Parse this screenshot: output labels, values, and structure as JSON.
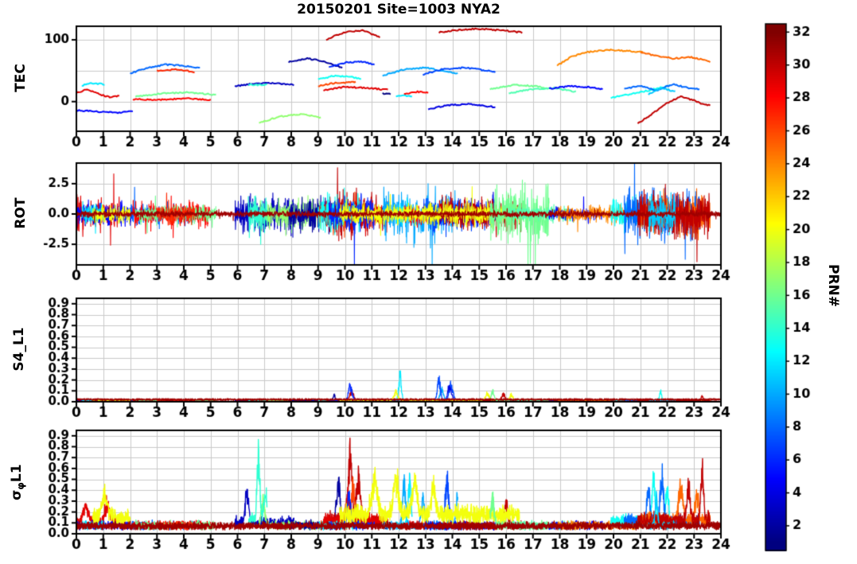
{
  "title": "20150201 Site=1003 NYA2",
  "colors": {
    "background": "#ffffff",
    "grid": "#c9c9c9",
    "axis": "#000000"
  },
  "x_axis": {
    "lim": [
      0,
      24
    ],
    "ticks": [
      0,
      1,
      2,
      3,
      4,
      5,
      6,
      7,
      8,
      9,
      10,
      11,
      12,
      13,
      14,
      15,
      16,
      17,
      18,
      19,
      20,
      21,
      22,
      23,
      24
    ]
  },
  "colorbar": {
    "label": "PRN#",
    "value_range": [
      0.5,
      32.5
    ],
    "colormap": "jet",
    "ticks": [
      2,
      4,
      6,
      8,
      10,
      12,
      14,
      16,
      18,
      20,
      22,
      24,
      26,
      28,
      30,
      32
    ]
  },
  "panels": [
    {
      "id": "tec",
      "ylabel": "TEC",
      "ylim": [
        -48,
        122
      ],
      "yticks": [
        {
          "v": 100,
          "label": "100"
        },
        {
          "v": 0,
          "label": "0"
        }
      ],
      "grid_y": [
        0,
        50,
        100
      ]
    },
    {
      "id": "rot",
      "ylabel": "ROT",
      "ylim": [
        -4.2,
        4.2
      ],
      "yticks": [
        {
          "v": 2.5,
          "label": "2.5"
        },
        {
          "v": 0,
          "label": "0.0"
        },
        {
          "v": -2.5,
          "label": "-2.5"
        }
      ],
      "grid_y": [
        -2.5,
        0,
        2.5
      ]
    },
    {
      "id": "s4",
      "ylabel": "S4_L1",
      "ylim": [
        0,
        0.95
      ],
      "yticks": [
        {
          "v": 0,
          "label": "0.0"
        },
        {
          "v": 0.1,
          "label": "0.1"
        },
        {
          "v": 0.2,
          "label": "0.2"
        },
        {
          "v": 0.3,
          "label": "0.3"
        },
        {
          "v": 0.4,
          "label": "0.4"
        },
        {
          "v": 0.5,
          "label": "0.5"
        },
        {
          "v": 0.6,
          "label": "0.6"
        },
        {
          "v": 0.7,
          "label": "0.7"
        },
        {
          "v": 0.8,
          "label": "0.8"
        },
        {
          "v": 0.9,
          "label": "0.9"
        }
      ],
      "grid_y": [
        0.1,
        0.2,
        0.3,
        0.4,
        0.5,
        0.6,
        0.7,
        0.8,
        0.9
      ]
    },
    {
      "id": "sigma",
      "ylabel": "σφL1",
      "ylabel_parts": {
        "pre": "σ",
        "sub": "φ",
        "post": "L1"
      },
      "ylim": [
        0,
        0.95
      ],
      "yticks": [
        {
          "v": 0,
          "label": "0.0"
        },
        {
          "v": 0.1,
          "label": "0.1"
        },
        {
          "v": 0.2,
          "label": "0.2"
        },
        {
          "v": 0.3,
          "label": "0.3"
        },
        {
          "v": 0.4,
          "label": "0.4"
        },
        {
          "v": 0.5,
          "label": "0.5"
        },
        {
          "v": 0.6,
          "label": "0.6"
        },
        {
          "v": 0.7,
          "label": "0.7"
        },
        {
          "v": 0.8,
          "label": "0.8"
        },
        {
          "v": 0.9,
          "label": "0.9"
        }
      ],
      "grid_y": [
        0.1,
        0.2,
        0.3,
        0.4,
        0.5,
        0.6,
        0.7,
        0.8,
        0.9
      ]
    }
  ],
  "chart_data": {
    "type": "line",
    "x_range_hours": [
      0,
      24
    ],
    "panels": [
      "TEC",
      "ROT",
      "S4_L1",
      "sigma_phi_L1"
    ],
    "color_by": "PRN jet colormap 1-32",
    "series": [
      {
        "prn": 29,
        "tec": [
          [
            0,
            14
          ],
          [
            0.4,
            20
          ],
          [
            0.9,
            11
          ],
          [
            1.3,
            7
          ],
          [
            1.6,
            10
          ]
        ],
        "rot_amp": 1.3,
        "sig_base": 0.09,
        "sig_noise": 0.07,
        "sig_bursts": [
          [
            0.35,
            0.18,
            0.12
          ],
          [
            1.15,
            0.22,
            0.12
          ]
        ]
      },
      {
        "prn": 5,
        "tec": [
          [
            0,
            -14
          ],
          [
            0.7,
            -16
          ],
          [
            1.5,
            -18
          ],
          [
            2.1,
            -15
          ]
        ],
        "rot_amp": 0.9
      },
      {
        "prn": 12,
        "tec": [
          [
            0.2,
            26
          ],
          [
            0.6,
            30
          ],
          [
            1.05,
            28
          ]
        ],
        "rot_amp": 0.8
      },
      {
        "prn": 8,
        "tec": [
          [
            2.0,
            46
          ],
          [
            2.7,
            55
          ],
          [
            3.3,
            60
          ],
          [
            4.0,
            58
          ],
          [
            4.6,
            55
          ]
        ],
        "rot_amp": 0.7
      },
      {
        "prn": 28,
        "tec": [
          [
            2.1,
            4
          ],
          [
            3.0,
            3
          ],
          [
            4.1,
            5
          ],
          [
            5.0,
            3
          ]
        ],
        "rot_amp": 0.9
      },
      {
        "prn": 16,
        "tec": [
          [
            2.2,
            8
          ],
          [
            3.1,
            13
          ],
          [
            4.1,
            15
          ],
          [
            5.2,
            11
          ]
        ],
        "rot_amp": 0.7
      },
      {
        "prn": 27,
        "tec": [
          [
            3.0,
            50
          ],
          [
            3.7,
            52
          ],
          [
            4.4,
            48
          ]
        ],
        "rot_amp": 0.9
      },
      {
        "prn": 20,
        "trange": [
          0.6,
          2.0
        ],
        "rot_amp": 0.7,
        "sig_base": 0.12,
        "sig_noise": 0.1,
        "sig_bursts": [
          [
            1.05,
            0.25,
            0.15
          ]
        ]
      },
      {
        "prn": 3,
        "tec": [
          [
            5.9,
            25
          ],
          [
            6.6,
            29
          ],
          [
            7.4,
            30
          ],
          [
            8.1,
            27
          ]
        ],
        "rot_amp": 1.6,
        "sig_base": 0.08,
        "sig_noise": 0.07,
        "sig_bursts": [
          [
            6.35,
            0.32,
            0.1
          ]
        ]
      },
      {
        "prn": 17,
        "tec": [
          [
            6.8,
            -34
          ],
          [
            7.6,
            -24
          ],
          [
            8.4,
            -20
          ],
          [
            9.1,
            -26
          ]
        ],
        "rot_amp": 1.2,
        "sig_bursts": [
          [
            6.95,
            0.3,
            0.09
          ]
        ]
      },
      {
        "prn": 14,
        "tec": [
          [
            6.4,
            28
          ],
          [
            6.8,
            27
          ],
          [
            7.1,
            28
          ]
        ],
        "rot_amp": 1.4,
        "sig_base": 0.1,
        "sig_noise": 0.1,
        "sig_bursts": [
          [
            6.78,
            0.75,
            0.07
          ],
          [
            7.05,
            0.32,
            0.09
          ]
        ]
      },
      {
        "prn": 2,
        "tec": [
          [
            7.9,
            64
          ],
          [
            8.6,
            70
          ],
          [
            9.3,
            64
          ],
          [
            9.9,
            55
          ]
        ],
        "rot_amp": 1.3,
        "s4_bursts": [
          [
            9.6,
            0.07,
            0.05
          ]
        ],
        "sig_bursts": [
          [
            9.75,
            0.52,
            0.1
          ]
        ]
      },
      {
        "prn": 30,
        "tec": [
          [
            9.3,
            100
          ],
          [
            9.7,
            108
          ],
          [
            10.1,
            113
          ],
          [
            10.7,
            115
          ],
          [
            11.3,
            104
          ]
        ],
        "rot_amp": 1.8,
        "s4_bursts": [
          [
            10.25,
            0.1,
            0.1
          ]
        ],
        "sig_base": 0.1,
        "sig_noise": 0.09,
        "sig_bursts": [
          [
            10.2,
            0.85,
            0.09
          ],
          [
            10.5,
            0.5,
            0.1
          ]
        ]
      },
      {
        "prn": 26,
        "tec": [
          [
            9.0,
            25
          ],
          [
            9.6,
            30
          ],
          [
            10.4,
            32
          ]
        ],
        "rot_amp": 1.0,
        "sig_bursts": [
          [
            10.3,
            0.45,
            0.1
          ]
        ]
      },
      {
        "prn": 29,
        "tec": [
          [
            9.2,
            18
          ],
          [
            10.0,
            24
          ],
          [
            10.8,
            22
          ],
          [
            11.6,
            19
          ]
        ],
        "rot_amp": 1.2,
        "sig_base": 0.1,
        "sig_noise": 0.08,
        "sig_bursts": [
          [
            10.1,
            0.3,
            0.08
          ]
        ]
      },
      {
        "prn": 13,
        "tec": [
          [
            9.0,
            36
          ],
          [
            9.6,
            42
          ],
          [
            10.2,
            40
          ],
          [
            10.6,
            37
          ]
        ],
        "rot_amp": 1.5
      },
      {
        "prn": 6,
        "tec": [
          [
            9.4,
            56
          ],
          [
            10.0,
            63
          ],
          [
            10.6,
            65
          ],
          [
            11.1,
            60
          ]
        ],
        "rot_amp": 1.4,
        "s4_bursts": [
          [
            10.2,
            0.17,
            0.1
          ]
        ],
        "sig_bursts": [
          [
            10.15,
            0.35,
            0.09
          ]
        ]
      },
      {
        "prn": 1,
        "tec": [
          [
            11.4,
            13
          ],
          [
            11.7,
            12
          ]
        ],
        "rot_amp": 0.6
      },
      {
        "prn": 10,
        "tec": [
          [
            11.4,
            42
          ],
          [
            12.2,
            52
          ],
          [
            13.0,
            55
          ],
          [
            13.6,
            50
          ],
          [
            14.2,
            45
          ]
        ],
        "rot_amp": 1.8,
        "s4_bursts": [
          [
            13.6,
            0.14,
            0.09
          ]
        ],
        "sig_bursts": [
          [
            12.2,
            0.5,
            0.08
          ],
          [
            12.9,
            0.3,
            0.09
          ],
          [
            14.2,
            0.35,
            0.09
          ]
        ]
      },
      {
        "prn": 12,
        "tec": [
          [
            11.9,
            8
          ],
          [
            12.2,
            10
          ],
          [
            12.5,
            8
          ]
        ],
        "rot_amp": 1.2,
        "s4_bursts": [
          [
            12.05,
            0.3,
            0.07
          ]
        ],
        "sig_bursts": [
          [
            12.4,
            0.5,
            0.08
          ]
        ]
      },
      {
        "prn": 28,
        "tec": [
          [
            12.2,
            12
          ],
          [
            12.7,
            16
          ],
          [
            13.1,
            14
          ]
        ],
        "rot_amp": 0.9
      },
      {
        "prn": 7,
        "tec": [
          [
            12.9,
            44
          ],
          [
            13.6,
            52
          ],
          [
            14.4,
            55
          ],
          [
            15.0,
            52
          ],
          [
            15.6,
            48
          ]
        ],
        "rot_amp": 1.3,
        "s4_bursts": [
          [
            13.5,
            0.25,
            0.08
          ],
          [
            13.95,
            0.2,
            0.1
          ]
        ],
        "sig_bursts": [
          [
            13.8,
            0.55,
            0.09
          ]
        ]
      },
      {
        "prn": 4,
        "tec": [
          [
            13.1,
            -12
          ],
          [
            13.8,
            -6
          ],
          [
            14.6,
            -4
          ],
          [
            15.6,
            -9
          ]
        ],
        "rot_amp": 1.0,
        "s4_bursts": [
          [
            13.9,
            0.2,
            0.09
          ]
        ]
      },
      {
        "prn": 30,
        "tec": [
          [
            13.5,
            112
          ],
          [
            14.2,
            116
          ],
          [
            15.0,
            118
          ],
          [
            15.9,
            115
          ],
          [
            16.6,
            112
          ]
        ],
        "rot_amp": 1.3,
        "s4_bursts": [
          [
            15.9,
            0.08,
            0.09
          ]
        ],
        "sig_bursts": [
          [
            16.0,
            0.25,
            0.1
          ]
        ]
      },
      {
        "prn": 20,
        "trange": [
          9.8,
          16.5
        ],
        "rot_amp": 0.9,
        "sig_base": 0.14,
        "sig_noise": 0.12,
        "s4_bursts": [
          [
            11.9,
            0.1,
            0.1
          ],
          [
            15.3,
            0.08,
            0.1
          ],
          [
            16.2,
            0.07,
            0.08
          ]
        ],
        "sig_bursts": [
          [
            11.1,
            0.4,
            0.14
          ],
          [
            11.9,
            0.45,
            0.12
          ],
          [
            12.6,
            0.35,
            0.14
          ],
          [
            13.3,
            0.3,
            0.12
          ]
        ]
      },
      {
        "prn": 16,
        "tec": [
          [
            15.4,
            20
          ],
          [
            16.3,
            27
          ],
          [
            17.1,
            25
          ],
          [
            17.6,
            21
          ]
        ],
        "rot_amp": 2.2,
        "s4_bursts": [
          [
            15.5,
            0.12,
            0.07
          ]
        ],
        "sig_bursts": [
          [
            15.5,
            0.3,
            0.09
          ]
        ]
      },
      {
        "prn": 15,
        "tec": [
          [
            16.1,
            13
          ],
          [
            16.9,
            20
          ],
          [
            17.8,
            22
          ],
          [
            18.6,
            16
          ]
        ],
        "rot_amp": 0.6
      },
      {
        "prn": 5,
        "tec": [
          [
            17.6,
            21
          ],
          [
            18.4,
            25
          ],
          [
            19.2,
            23
          ],
          [
            19.6,
            20
          ]
        ],
        "rot_amp": 0.5
      },
      {
        "prn": 24,
        "tec": [
          [
            17.9,
            58
          ],
          [
            18.4,
            72
          ],
          [
            19.0,
            80
          ],
          [
            19.8,
            84
          ],
          [
            20.5,
            82
          ],
          [
            21.1,
            80
          ]
        ],
        "rot_amp": 0.6
      },
      {
        "prn": 13,
        "tec": [
          [
            19.9,
            6
          ],
          [
            20.6,
            12
          ],
          [
            21.3,
            18
          ],
          [
            22.1,
            26
          ]
        ],
        "rot_amp": 1.1,
        "s4_bursts": [
          [
            21.75,
            0.12,
            0.05
          ]
        ],
        "sig_base": 0.09,
        "sig_noise": 0.08,
        "sig_bursts": [
          [
            21.5,
            0.45,
            0.09
          ],
          [
            22.0,
            0.35,
            0.09
          ]
        ]
      },
      {
        "prn": 8,
        "tec": [
          [
            20.4,
            20
          ],
          [
            21.0,
            26
          ],
          [
            21.6,
            18
          ],
          [
            22.2,
            28
          ],
          [
            22.8,
            22
          ],
          [
            23.2,
            20
          ]
        ],
        "rot_amp": 1.9,
        "sig_base": 0.09,
        "sig_noise": 0.08,
        "sig_bursts": [
          [
            21.3,
            0.35,
            0.08
          ],
          [
            21.8,
            0.5,
            0.09
          ]
        ]
      },
      {
        "prn": 25,
        "tec": [
          [
            21.0,
            80
          ],
          [
            21.6,
            74
          ],
          [
            22.2,
            70
          ],
          [
            22.9,
            72
          ],
          [
            23.6,
            65
          ]
        ],
        "rot_amp": 1.6,
        "sig_base": 0.1,
        "sig_noise": 0.09,
        "sig_bursts": [
          [
            22.5,
            0.4,
            0.11
          ],
          [
            23.1,
            0.3,
            0.09
          ]
        ]
      },
      {
        "prn": 30,
        "tec": [
          [
            20.9,
            -36
          ],
          [
            21.5,
            -18
          ],
          [
            22.0,
            -2
          ],
          [
            22.5,
            8
          ],
          [
            23.0,
            2
          ],
          [
            23.3,
            -4
          ],
          [
            23.6,
            -6
          ]
        ],
        "rot_amp": 1.9,
        "sig_base": 0.1,
        "sig_noise": 0.09,
        "s4_bursts": [
          [
            23.3,
            0.06,
            0.05
          ]
        ],
        "sig_bursts": [
          [
            22.8,
            0.4,
            0.09
          ],
          [
            23.3,
            0.65,
            0.07
          ]
        ]
      },
      {
        "prn": 11,
        "tec": [
          [
            21.3,
            12
          ],
          [
            21.8,
            22
          ],
          [
            22.3,
            16
          ]
        ],
        "rot_amp": 1.5,
        "sig_bursts": [
          [
            21.6,
            0.3,
            0.07
          ]
        ]
      },
      {
        "prn": 31,
        "trange": [
          0,
          24
        ],
        "rot_amp": 0.25,
        "s4_base": 0.02,
        "sig_base": 0.06,
        "sig_noise": 0.04
      }
    ]
  }
}
